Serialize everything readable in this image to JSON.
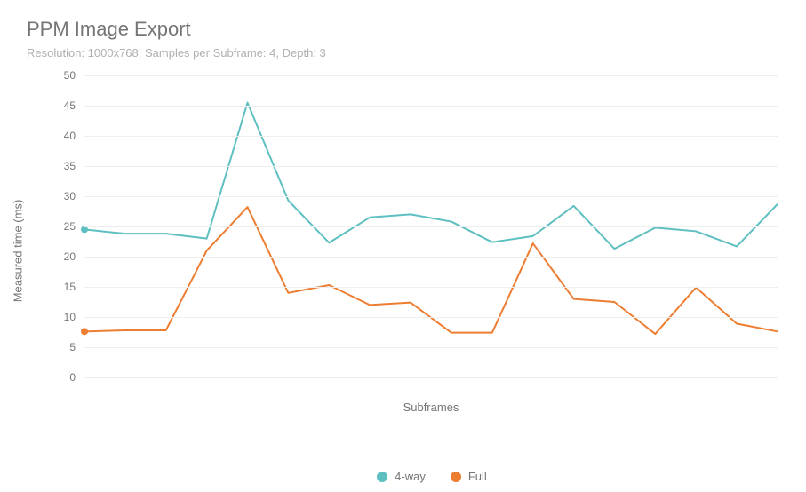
{
  "chart": {
    "type": "line",
    "title": "PPM Image Export",
    "subtitle": "Resolution: 1000x768, Samples per Subframe: 4, Depth: 3",
    "ylabel": "Measured time (ms)",
    "xlabel": "Subframes",
    "ylim": [
      0,
      50
    ],
    "ytick_step": 5,
    "background_color": "#ffffff",
    "grid_color": "#eeeeee",
    "tick_font_color": "#757575",
    "tick_fontsize": 12,
    "label_fontsize": 13,
    "title_fontsize": 22,
    "title_color": "#757575",
    "subtitle_color": "#b0b0b0",
    "line_width": 2,
    "marker_size": 4,
    "marker_first_only": true,
    "series": [
      {
        "name": "4-way",
        "color": "#5ebfc1",
        "values": [
          24.5,
          23.8,
          23.8,
          23.0,
          45.5,
          29.3,
          22.3,
          26.5,
          27.0,
          25.8,
          22.4,
          23.4,
          28.4,
          21.3,
          24.8,
          24.2,
          21.7,
          28.7
        ]
      },
      {
        "name": "Full",
        "color": "#ed7d31",
        "values": [
          7.6,
          7.8,
          7.8,
          21.0,
          28.2,
          14.0,
          15.3,
          12.0,
          12.4,
          7.4,
          7.4,
          22.2,
          13.0,
          12.5,
          7.2,
          14.9,
          8.9,
          7.6
        ]
      }
    ],
    "legend_position": "bottom"
  }
}
